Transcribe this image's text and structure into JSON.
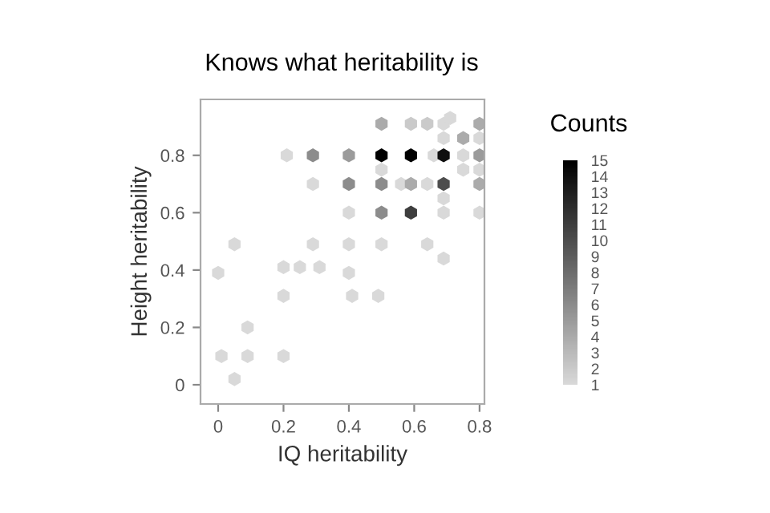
{
  "chart_data": {
    "type": "scatter",
    "title": "Knows what heritability is",
    "xlabel": "IQ heritability",
    "ylabel": "Height heritability",
    "clabel": "Counts",
    "x": [
      0.5,
      0.59,
      0.64,
      0.69,
      0.8,
      0.71,
      0.69,
      0.75,
      0.8,
      0.21,
      0.29,
      0.4,
      0.5,
      0.59,
      0.66,
      0.69,
      0.75,
      0.8,
      0.5,
      0.75,
      0.8,
      0.29,
      0.4,
      0.5,
      0.56,
      0.59,
      0.64,
      0.69,
      0.8,
      0.69,
      0.4,
      0.5,
      0.59,
      0.69,
      0.8,
      0.05,
      0.29,
      0.4,
      0.5,
      0.64,
      0.69,
      0.2,
      0.25,
      0.31,
      0.4,
      0.2,
      0.41,
      0.49,
      0.0,
      0.09,
      0.01,
      0.09,
      0.2,
      0.05
    ],
    "values": [
      0.91,
      0.91,
      0.91,
      0.91,
      0.91,
      0.93,
      0.86,
      0.86,
      0.86,
      0.8,
      0.8,
      0.8,
      0.8,
      0.8,
      0.8,
      0.8,
      0.8,
      0.8,
      0.75,
      0.75,
      0.75,
      0.7,
      0.7,
      0.7,
      0.7,
      0.7,
      0.7,
      0.7,
      0.7,
      0.65,
      0.6,
      0.6,
      0.6,
      0.6,
      0.6,
      0.49,
      0.49,
      0.49,
      0.49,
      0.49,
      0.44,
      0.41,
      0.41,
      0.41,
      0.39,
      0.31,
      0.31,
      0.31,
      0.39,
      0.2,
      0.1,
      0.1,
      0.1,
      0.02
    ],
    "cvalues": [
      4,
      2,
      2,
      1,
      4,
      1,
      1,
      4,
      1,
      1,
      6,
      5,
      15,
      15,
      1,
      14,
      1,
      5,
      1,
      1,
      1,
      1,
      6,
      6,
      1,
      4,
      1,
      10,
      4,
      1,
      1,
      6,
      11,
      1,
      1,
      1,
      1,
      1,
      1,
      1,
      1,
      1,
      1,
      1,
      1,
      1,
      1,
      1,
      1,
      1,
      1,
      1,
      1,
      1
    ],
    "xlim": [
      -0.054,
      0.815
    ],
    "ylim": [
      -0.067,
      0.995
    ],
    "xticks": [
      0,
      0.2,
      0.4,
      0.6,
      0.8
    ],
    "yticks": [
      0,
      0.2,
      0.4,
      0.6,
      0.8
    ],
    "clim": [
      1,
      15
    ],
    "cticks": [
      1,
      2,
      3,
      4,
      5,
      6,
      7,
      8,
      9,
      10,
      11,
      12,
      13,
      14,
      15
    ],
    "grid": false
  }
}
